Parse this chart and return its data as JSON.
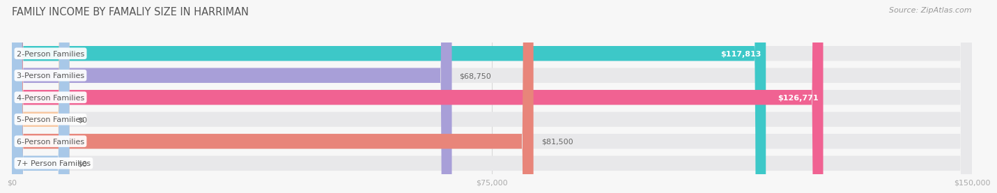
{
  "title": "FAMILY INCOME BY FAMALIY SIZE IN HARRIMAN",
  "source": "Source: ZipAtlas.com",
  "categories": [
    "2-Person Families",
    "3-Person Families",
    "4-Person Families",
    "5-Person Families",
    "6-Person Families",
    "7+ Person Families"
  ],
  "values": [
    117813,
    68750,
    126771,
    0,
    81500,
    0
  ],
  "bar_colors": [
    "#3dc8c8",
    "#a89fd8",
    "#f06292",
    "#f8c8a0",
    "#e8857a",
    "#a8c8e8"
  ],
  "value_label_inside": [
    true,
    false,
    true,
    false,
    false,
    false
  ],
  "value_labels": [
    "$117,813",
    "$68,750",
    "$126,771",
    "$0",
    "$81,500",
    "$0"
  ],
  "xlim": [
    0,
    150000
  ],
  "xticks": [
    0,
    75000,
    150000
  ],
  "xtick_labels": [
    "$0",
    "$75,000",
    "$150,000"
  ],
  "background_color": "#f7f7f7",
  "bar_bg_color": "#e8e8ea",
  "bar_height": 0.68,
  "bar_gap": 0.08,
  "title_fontsize": 10.5,
  "source_fontsize": 8,
  "label_fontsize": 8,
  "value_fontsize": 8,
  "title_color": "#555555",
  "source_color": "#999999",
  "label_text_color": "#555555",
  "grid_color": "#d8d8d8",
  "zero_bar_width": 9000
}
